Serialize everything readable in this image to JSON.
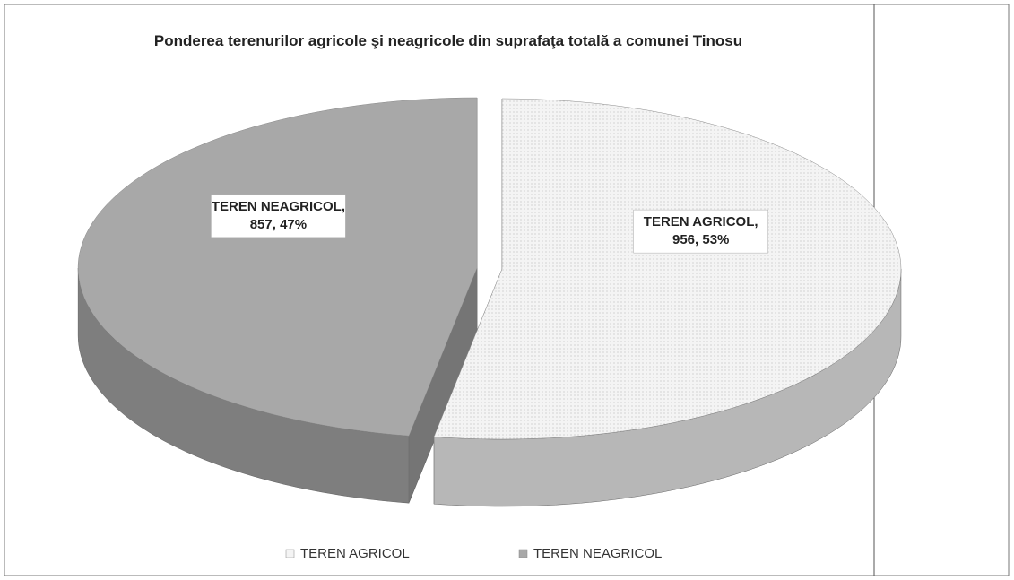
{
  "chart_data": {
    "type": "pie",
    "title": "Ponderea terenurilor agricole şi neagricole din suprafaţa totală a comunei Tinosu",
    "categories": [
      "TEREN AGRICOL",
      "TEREN NEAGRICOL"
    ],
    "values": [
      956,
      857
    ],
    "value_labels": [
      [
        "TEREN AGRICOL,",
        "956, 53%"
      ],
      [
        "TEREN NEAGRICOL,",
        "857, 47%"
      ]
    ],
    "colors": [
      "#f4f4f4",
      "#a8a8a8"
    ],
    "legend": "bottom"
  }
}
